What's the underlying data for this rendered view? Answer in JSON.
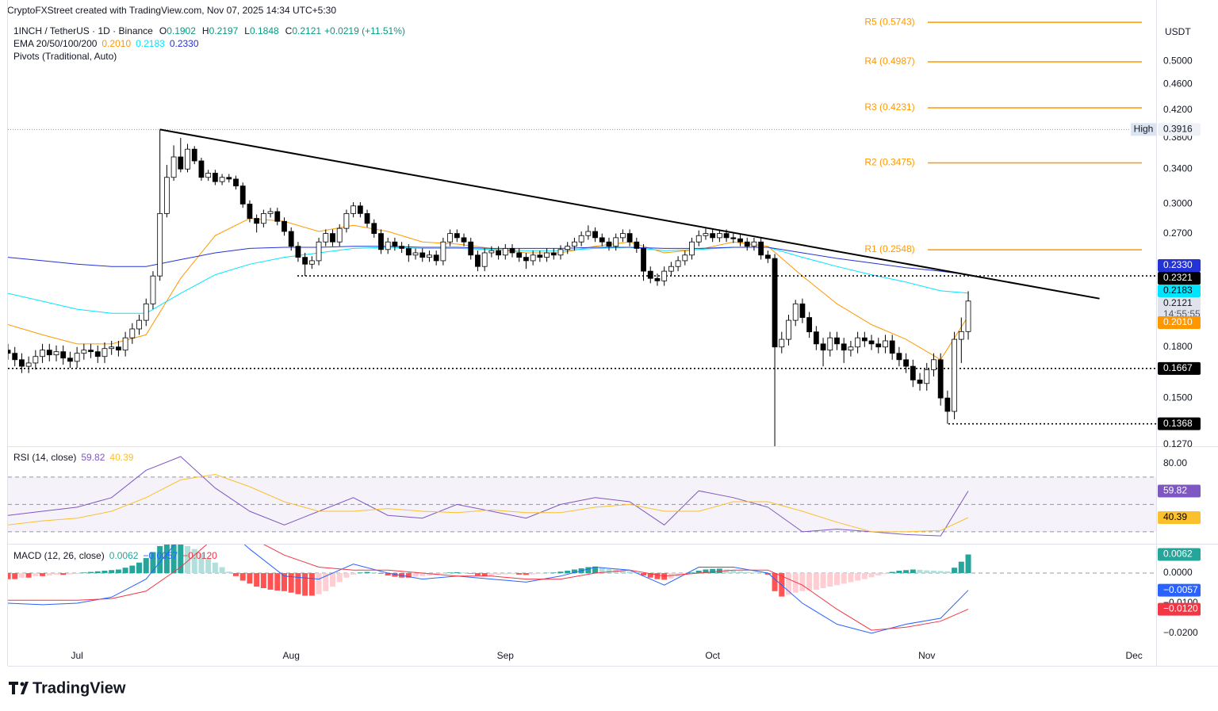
{
  "header": "CryptoFXStreet created with TradingView.com, Nov 07, 2025 14:34 UTC+5:30",
  "brand": "TradingView",
  "chart_data": {
    "type": "candlestick",
    "title": "1INCH / TetherUS · 1D · Binance",
    "ohlc": [
      {
        "key": "O",
        "value": 0.1902
      },
      {
        "key": "H",
        "value": 0.2197
      },
      {
        "key": "L",
        "value": 0.1848
      },
      {
        "key": "C",
        "value": 0.2121
      }
    ],
    "change": "+0.0219 (+11.51%)",
    "currency": "USDT",
    "countdown": "14:55:55",
    "log_scale": true,
    "xlim": [
      0,
      166.2
    ],
    "xticks": [
      {
        "value": 10,
        "label": "Jul"
      },
      {
        "value": 41,
        "label": "Aug"
      },
      {
        "value": 72,
        "label": "Sep"
      },
      {
        "value": 102,
        "label": "Oct"
      },
      {
        "value": 133,
        "label": "Nov"
      },
      {
        "value": 163,
        "label": "Dec"
      }
    ],
    "ylim": [
      0.1266,
      0.622
    ],
    "yticks": [
      {
        "value": 0.5,
        "label": "0.5000"
      },
      {
        "value": 0.46,
        "label": "0.4600"
      },
      {
        "value": 0.42,
        "label": "0.4200"
      },
      {
        "value": 0.38,
        "label": "0.3800"
      },
      {
        "value": 0.34,
        "label": "0.3400"
      },
      {
        "value": 0.3,
        "label": "0.3000"
      },
      {
        "value": 0.27,
        "label": "0.2700"
      },
      {
        "value": 0.18,
        "label": "0.1800"
      },
      {
        "value": 0.15,
        "label": "0.1500"
      },
      {
        "value": 0.127,
        "label": "0.1270"
      }
    ],
    "candles": {
      "up_color": "#ffffff",
      "down_color": "#000000",
      "open": [
        0.178,
        0.176,
        0.172,
        0.168,
        0.17,
        0.174,
        0.178,
        0.175,
        0.177,
        0.173,
        0.171,
        0.176,
        0.178,
        0.177,
        0.174,
        0.179,
        0.18,
        0.178,
        0.186,
        0.192,
        0.198,
        0.21,
        0.232,
        0.29,
        0.33,
        0.355,
        0.34,
        0.365,
        0.35,
        0.33,
        0.335,
        0.325,
        0.33,
        0.328,
        0.32,
        0.3,
        0.285,
        0.28,
        0.29,
        0.292,
        0.282,
        0.272,
        0.258,
        0.248,
        0.242,
        0.245,
        0.262,
        0.27,
        0.262,
        0.275,
        0.29,
        0.298,
        0.29,
        0.28,
        0.27,
        0.255,
        0.262,
        0.258,
        0.256,
        0.25,
        0.252,
        0.248,
        0.25,
        0.245,
        0.262,
        0.27,
        0.266,
        0.262,
        0.25,
        0.24,
        0.252,
        0.254,
        0.25,
        0.256,
        0.252,
        0.248,
        0.245,
        0.25,
        0.248,
        0.252,
        0.25,
        0.255,
        0.258,
        0.262,
        0.268,
        0.272,
        0.266,
        0.262,
        0.258,
        0.266,
        0.27,
        0.262,
        0.256,
        0.236,
        0.23,
        0.228,
        0.236,
        0.24,
        0.245,
        0.25,
        0.262,
        0.268,
        0.27,
        0.266,
        0.27,
        0.266,
        0.265,
        0.262,
        0.258,
        0.262,
        0.25,
        0.247,
        0.18,
        0.185,
        0.198,
        0.21,
        0.2,
        0.19,
        0.182,
        0.178,
        0.186,
        0.182,
        0.178,
        0.18,
        0.186,
        0.184,
        0.182,
        0.18,
        0.184,
        0.176,
        0.172,
        0.168,
        0.16,
        0.158,
        0.166,
        0.172,
        0.15,
        0.143,
        0.185,
        0.1902
      ],
      "high": [
        0.182,
        0.18,
        0.176,
        0.174,
        0.178,
        0.182,
        0.182,
        0.181,
        0.181,
        0.177,
        0.18,
        0.182,
        0.182,
        0.181,
        0.183,
        0.184,
        0.184,
        0.19,
        0.196,
        0.202,
        0.214,
        0.236,
        0.3916,
        0.345,
        0.37,
        0.38,
        0.372,
        0.369,
        0.354,
        0.339,
        0.339,
        0.334,
        0.334,
        0.332,
        0.324,
        0.304,
        0.289,
        0.294,
        0.296,
        0.296,
        0.286,
        0.276,
        0.262,
        0.252,
        0.249,
        0.266,
        0.274,
        0.274,
        0.279,
        0.294,
        0.302,
        0.302,
        0.294,
        0.284,
        0.274,
        0.266,
        0.266,
        0.262,
        0.26,
        0.256,
        0.256,
        0.254,
        0.254,
        0.266,
        0.274,
        0.274,
        0.27,
        0.266,
        0.254,
        0.256,
        0.258,
        0.258,
        0.26,
        0.26,
        0.256,
        0.252,
        0.254,
        0.254,
        0.256,
        0.256,
        0.259,
        0.262,
        0.266,
        0.272,
        0.278,
        0.276,
        0.27,
        0.266,
        0.27,
        0.274,
        0.274,
        0.266,
        0.26,
        0.24,
        0.234,
        0.24,
        0.244,
        0.249,
        0.254,
        0.266,
        0.273,
        0.275,
        0.274,
        0.274,
        0.274,
        0.27,
        0.269,
        0.266,
        0.266,
        0.266,
        0.254,
        0.251,
        0.19,
        0.202,
        0.213,
        0.214,
        0.204,
        0.194,
        0.186,
        0.19,
        0.19,
        0.186,
        0.184,
        0.19,
        0.19,
        0.188,
        0.186,
        0.188,
        0.188,
        0.18,
        0.176,
        0.172,
        0.164,
        0.17,
        0.176,
        0.176,
        0.154,
        0.19,
        0.2,
        0.2197
      ],
      "low": [
        0.172,
        0.168,
        0.164,
        0.164,
        0.166,
        0.17,
        0.171,
        0.171,
        0.169,
        0.167,
        0.167,
        0.172,
        0.173,
        0.17,
        0.17,
        0.175,
        0.174,
        0.174,
        0.182,
        0.188,
        0.194,
        0.206,
        0.228,
        0.286,
        0.326,
        0.336,
        0.336,
        0.346,
        0.326,
        0.326,
        0.321,
        0.321,
        0.324,
        0.316,
        0.296,
        0.281,
        0.271,
        0.276,
        0.286,
        0.278,
        0.268,
        0.254,
        0.244,
        0.232,
        0.238,
        0.241,
        0.258,
        0.258,
        0.258,
        0.271,
        0.286,
        0.286,
        0.276,
        0.266,
        0.251,
        0.251,
        0.254,
        0.252,
        0.244,
        0.246,
        0.244,
        0.244,
        0.241,
        0.241,
        0.258,
        0.262,
        0.258,
        0.246,
        0.236,
        0.236,
        0.248,
        0.246,
        0.246,
        0.248,
        0.244,
        0.238,
        0.241,
        0.244,
        0.244,
        0.246,
        0.246,
        0.251,
        0.254,
        0.258,
        0.264,
        0.262,
        0.258,
        0.254,
        0.254,
        0.262,
        0.258,
        0.252,
        0.228,
        0.226,
        0.224,
        0.224,
        0.232,
        0.236,
        0.241,
        0.246,
        0.258,
        0.264,
        0.262,
        0.262,
        0.262,
        0.261,
        0.258,
        0.254,
        0.254,
        0.246,
        0.243,
        0.125,
        0.176,
        0.181,
        0.194,
        0.196,
        0.186,
        0.178,
        0.168,
        0.174,
        0.178,
        0.17,
        0.174,
        0.176,
        0.18,
        0.178,
        0.176,
        0.176,
        0.172,
        0.168,
        0.164,
        0.156,
        0.154,
        0.154,
        0.162,
        0.146,
        0.1368,
        0.139,
        0.17,
        0.1848
      ],
      "close": [
        0.176,
        0.172,
        0.168,
        0.17,
        0.174,
        0.178,
        0.175,
        0.177,
        0.173,
        0.171,
        0.176,
        0.178,
        0.177,
        0.174,
        0.179,
        0.18,
        0.178,
        0.186,
        0.192,
        0.198,
        0.21,
        0.232,
        0.29,
        0.33,
        0.355,
        0.34,
        0.365,
        0.35,
        0.33,
        0.335,
        0.325,
        0.33,
        0.328,
        0.32,
        0.3,
        0.285,
        0.28,
        0.29,
        0.292,
        0.282,
        0.272,
        0.258,
        0.248,
        0.242,
        0.245,
        0.262,
        0.27,
        0.262,
        0.275,
        0.29,
        0.298,
        0.29,
        0.28,
        0.27,
        0.255,
        0.262,
        0.258,
        0.256,
        0.25,
        0.252,
        0.248,
        0.25,
        0.245,
        0.262,
        0.27,
        0.266,
        0.262,
        0.25,
        0.24,
        0.252,
        0.254,
        0.25,
        0.256,
        0.252,
        0.248,
        0.245,
        0.25,
        0.248,
        0.252,
        0.25,
        0.255,
        0.258,
        0.262,
        0.268,
        0.272,
        0.266,
        0.262,
        0.258,
        0.266,
        0.27,
        0.262,
        0.256,
        0.236,
        0.23,
        0.228,
        0.236,
        0.24,
        0.245,
        0.25,
        0.262,
        0.268,
        0.27,
        0.266,
        0.27,
        0.266,
        0.265,
        0.262,
        0.258,
        0.262,
        0.25,
        0.247,
        0.18,
        0.185,
        0.198,
        0.21,
        0.2,
        0.19,
        0.182,
        0.178,
        0.186,
        0.182,
        0.178,
        0.18,
        0.186,
        0.184,
        0.182,
        0.18,
        0.184,
        0.176,
        0.172,
        0.168,
        0.16,
        0.158,
        0.166,
        0.172,
        0.15,
        0.143,
        0.185,
        0.1902,
        0.2121
      ]
    },
    "indicator_x": [
      0,
      5,
      10,
      15,
      20,
      25,
      30,
      35,
      40,
      45,
      50,
      55,
      60,
      65,
      70,
      75,
      80,
      85,
      90,
      95,
      100,
      105,
      110,
      115,
      120,
      125,
      130,
      135,
      139
    ],
    "ema": {
      "name": "EMA 20/50/100/200",
      "series": [
        {
          "color": "#ff9800",
          "values": [
            0.195,
            0.188,
            0.182,
            0.182,
            0.188,
            0.23,
            0.268,
            0.285,
            0.282,
            0.272,
            0.278,
            0.272,
            0.262,
            0.26,
            0.256,
            0.252,
            0.252,
            0.258,
            0.262,
            0.252,
            0.255,
            0.262,
            0.258,
            0.232,
            0.21,
            0.195,
            0.185,
            0.172,
            0.201
          ],
          "last": {
            "value": 0.201,
            "label": "0.2010"
          }
        },
        {
          "color": "#00e5ff",
          "values": [
            0.218,
            0.212,
            0.206,
            0.203,
            0.203,
            0.218,
            0.233,
            0.242,
            0.248,
            0.252,
            0.256,
            0.257,
            0.256,
            0.256,
            0.255,
            0.254,
            0.254,
            0.256,
            0.257,
            0.254,
            0.255,
            0.257,
            0.257,
            0.248,
            0.24,
            0.233,
            0.227,
            0.22,
            0.2183
          ],
          "last": {
            "value": 0.2183,
            "label": "0.2183"
          }
        },
        {
          "color": "#2433d6",
          "values": [
            0.248,
            0.245,
            0.242,
            0.24,
            0.24,
            0.246,
            0.252,
            0.256,
            0.257,
            0.257,
            0.258,
            0.258,
            0.257,
            0.257,
            0.256,
            0.256,
            0.256,
            0.257,
            0.257,
            0.256,
            0.256,
            0.257,
            0.257,
            0.252,
            0.247,
            0.243,
            0.239,
            0.236,
            0.233
          ],
          "last": {
            "value": 0.233,
            "label": "0.2330"
          }
        }
      ]
    },
    "pivots": {
      "name": "Pivots (Traditional, Auto)",
      "color": "#ff9800",
      "levels": [
        {
          "label": "R5 (0.5743)",
          "value": 0.5743
        },
        {
          "label": "R4 (0.4987)",
          "value": 0.4987
        },
        {
          "label": "R3 (0.4231)",
          "value": 0.4231
        },
        {
          "label": "R2 (0.3475)",
          "value": 0.3475
        },
        {
          "label": "R1 (0.2548)",
          "value": 0.2548
        }
      ]
    },
    "levels": [
      0.2321,
      0.1667,
      0.1368
    ],
    "high": {
      "label": "High",
      "value": 0.3916
    },
    "trendline": {
      "x": [
        22,
        158
      ],
      "y": [
        0.3916,
        0.214
      ]
    },
    "rsi": {
      "name": "RSI (14, close)",
      "ylim": [
        23,
        91.4
      ],
      "yticks": [
        {
          "value": 80,
          "label": "80.00"
        }
      ],
      "bands": [
        70,
        50,
        30
      ],
      "series": [
        {
          "color": "#7e57c2",
          "values": [
            42,
            45,
            48,
            55,
            75,
            85,
            62,
            45,
            35,
            45,
            55,
            42,
            40,
            50,
            45,
            40,
            50,
            55,
            52,
            35,
            60,
            55,
            48,
            30,
            32,
            30,
            28,
            27,
            59.82
          ],
          "last": {
            "value": 59.82,
            "label": "59.82"
          }
        },
        {
          "color": "#fbc02d",
          "values": [
            35,
            38,
            40,
            45,
            55,
            68,
            72,
            63,
            52,
            45,
            45,
            47,
            45,
            44,
            46,
            44,
            44,
            48,
            50,
            45,
            45,
            52,
            52,
            45,
            37,
            30,
            30,
            31,
            40.39
          ],
          "last": {
            "value": 40.39,
            "label": "40.39"
          }
        }
      ]
    },
    "macd": {
      "name": "MACD (12, 26, close)",
      "ylim": [
        -0.0303,
        0.0095
      ],
      "yticks": [
        {
          "value": 0,
          "label": "0.0000"
        },
        {
          "value": -0.01,
          "label": "−0.0100"
        },
        {
          "value": -0.02,
          "label": "−0.0200"
        }
      ],
      "histogram": {
        "colors": {
          "up_pos": "#26a69a",
          "down_pos": "#b2dfdb",
          "down_neg": "#ff5252",
          "up_neg": "#ffcdd2"
        },
        "values": [
          -0.002,
          -0.002,
          -0.0015,
          -0.0015,
          -0.001,
          -0.001,
          -0.0008,
          -0.0005,
          -0.0006,
          -0.0004,
          -0.0003,
          0.0002,
          0.0004,
          0.0006,
          0.0008,
          0.001,
          0.0012,
          0.0018,
          0.0025,
          0.0035,
          0.005,
          0.007,
          0.009,
          0.0095,
          0.0095,
          0.0095,
          0.009,
          0.008,
          0.0065,
          0.005,
          0.0035,
          0.002,
          0.0005,
          -0.001,
          -0.0025,
          -0.0035,
          -0.0045,
          -0.005,
          -0.0055,
          -0.0058,
          -0.006,
          -0.0065,
          -0.007,
          -0.0075,
          -0.0075,
          -0.007,
          -0.006,
          -0.0045,
          -0.003,
          -0.0015,
          -0.0005,
          0.0002,
          0.0004,
          0.0003,
          -0.0002,
          -0.0008,
          -0.0012,
          -0.0015,
          -0.0015,
          -0.0012,
          -0.001,
          -0.0008,
          -0.0006,
          -0.0002,
          0.0002,
          0.0003,
          0.0002,
          -0.0002,
          -0.0008,
          -0.001,
          -0.0008,
          -0.0006,
          -0.0004,
          -0.0003,
          -0.0005,
          -0.0006,
          -0.0004,
          -0.0002,
          0.0001,
          0.0002,
          0.0005,
          0.0008,
          0.0012,
          0.0016,
          0.002,
          0.0022,
          0.0018,
          0.0014,
          0.0012,
          0.001,
          0.0006,
          0.0002,
          -0.0008,
          -0.0015,
          -0.002,
          -0.0022,
          -0.0018,
          -0.0012,
          -0.0005,
          0.0002,
          0.0008,
          0.0012,
          0.0014,
          0.0015,
          0.0012,
          0.0008,
          0.0006,
          0.0004,
          0.0002,
          0.0001,
          -0.0005,
          -0.006,
          -0.0078,
          -0.0072,
          -0.0065,
          -0.006,
          -0.0058,
          -0.0055,
          -0.005,
          -0.0045,
          -0.004,
          -0.0035,
          -0.003,
          -0.0025,
          -0.002,
          -0.0014,
          -0.0008,
          -0.0003,
          0.0004,
          0.0008,
          0.001,
          0.0012,
          0.0011,
          0.0009,
          0.0008,
          0.0007,
          0.0006,
          0.0018,
          0.0038,
          0.0062
        ],
        "last": {
          "value": 0.0062,
          "label": "0.0062"
        }
      },
      "series": [
        {
          "color": "#2962ff",
          "values": [
            -0.01,
            -0.0105,
            -0.01,
            -0.008,
            -0.002,
            0.012,
            0.018,
            0.008,
            -0.001,
            -0.002,
            0.003,
            0,
            -0.002,
            -0.001,
            -0.002,
            -0.003,
            -0.001,
            0.002,
            0.001,
            -0.004,
            0.002,
            0.002,
            0,
            -0.01,
            -0.017,
            -0.02,
            -0.017,
            -0.015,
            -0.0057
          ],
          "last": {
            "value": -0.0057,
            "label": "−0.0057"
          }
        },
        {
          "color": "#f23645",
          "values": [
            -0.009,
            -0.009,
            -0.009,
            -0.0085,
            -0.006,
            0.002,
            0.012,
            0.012,
            0.006,
            0.002,
            0.001,
            0.001,
            0,
            -0.001,
            -0.001,
            -0.002,
            -0.002,
            0,
            0.001,
            -0.001,
            0,
            0.001,
            0.001,
            -0.004,
            -0.012,
            -0.019,
            -0.018,
            -0.016,
            -0.012
          ],
          "last": {
            "value": -0.012,
            "label": "−0.0120"
          }
        }
      ]
    }
  }
}
